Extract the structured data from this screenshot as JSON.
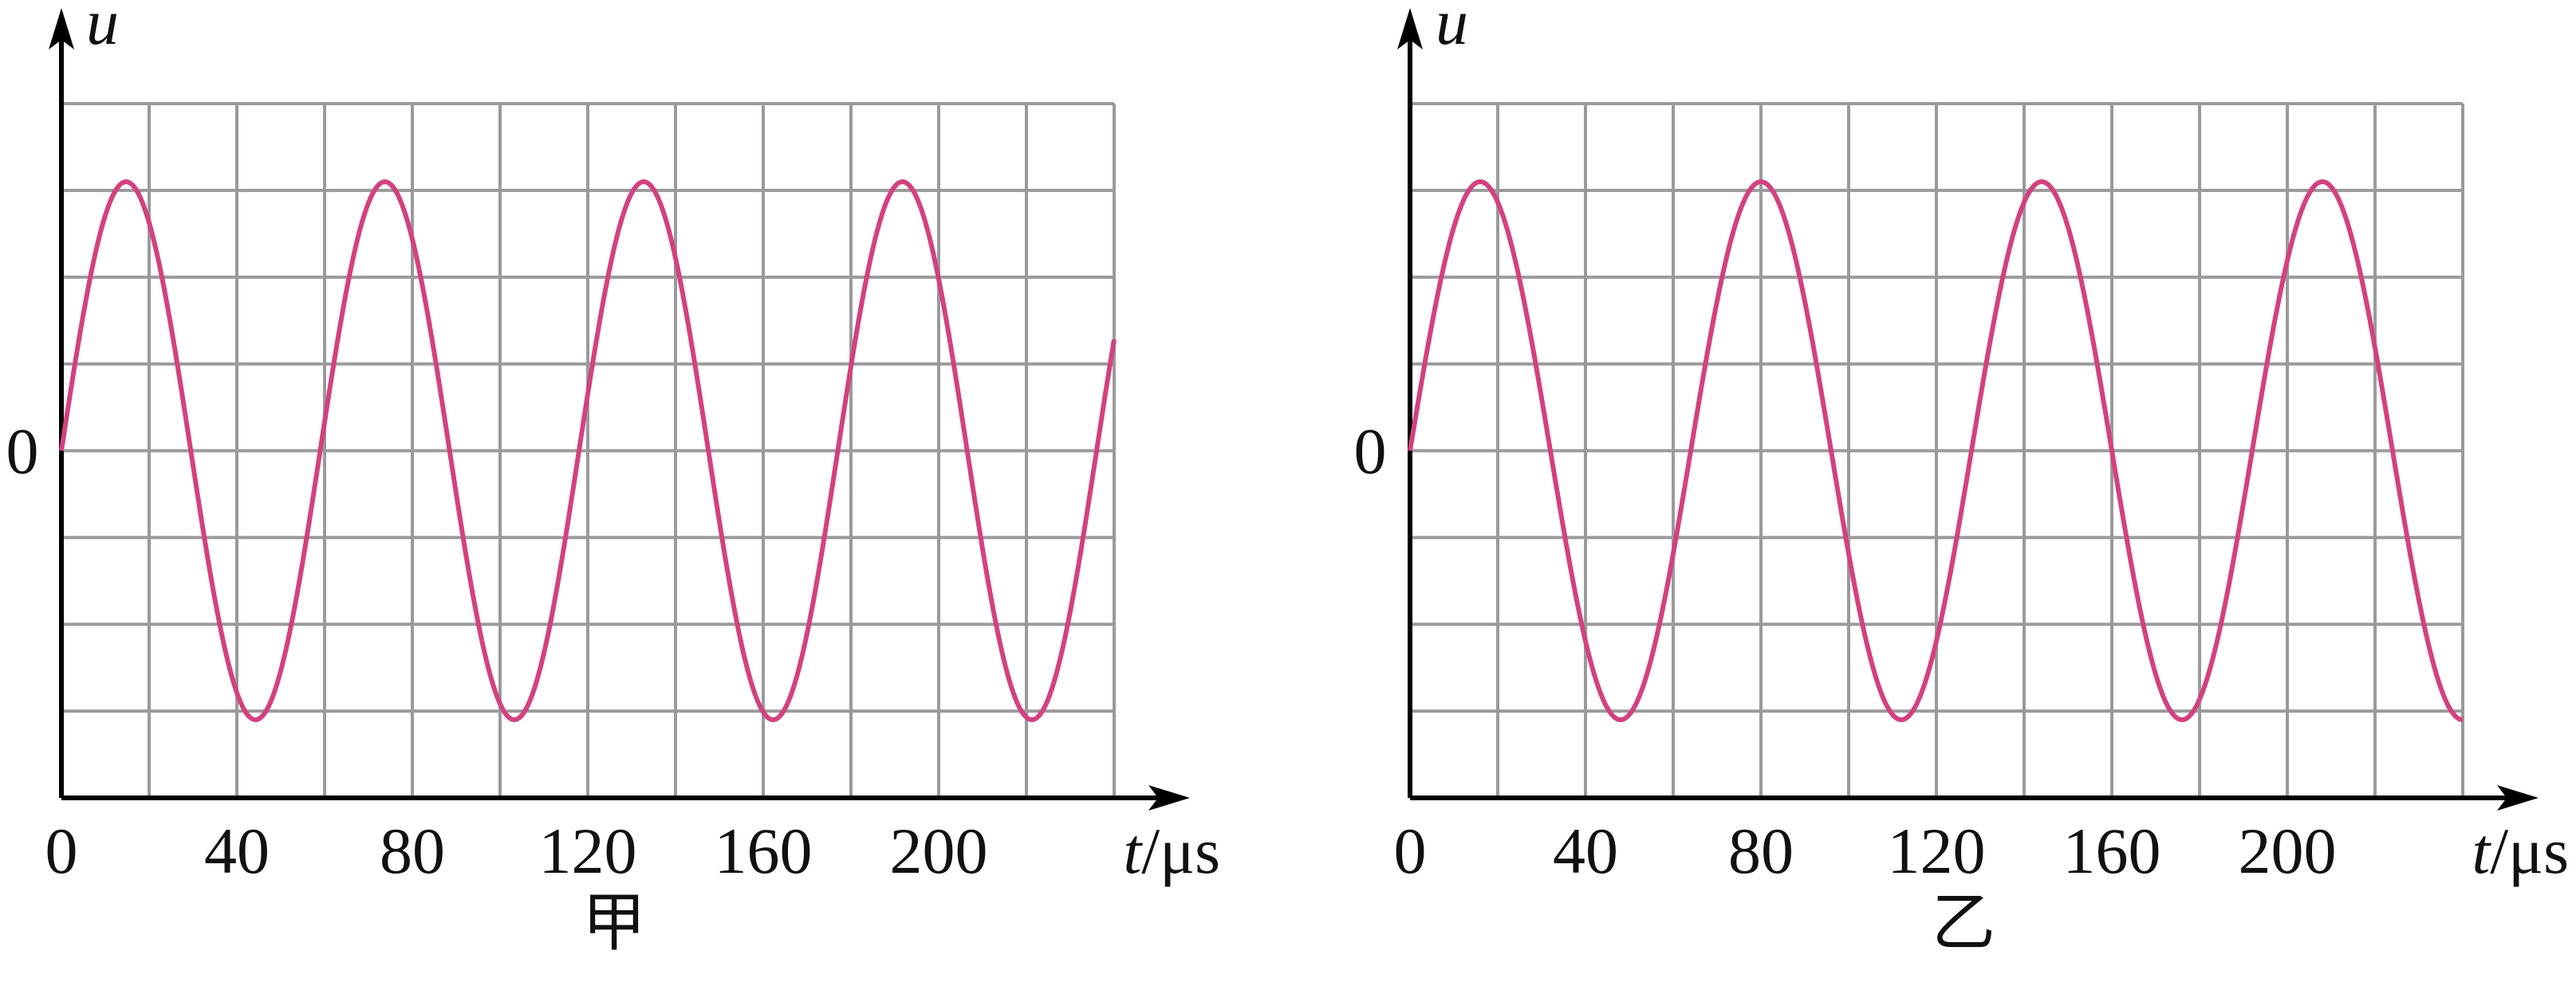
{
  "colors": {
    "curve": "#d2427f",
    "grid": "#9a9a9a",
    "axis": "#000000"
  },
  "chart_data": [
    {
      "type": "line",
      "caption": "甲",
      "ylabel": "u",
      "xlabel_var": "t",
      "xlabel_unit": "/μs",
      "origin_label": "0",
      "y_zero_label": "0",
      "xticks": [
        {
          "value": 0,
          "label": "0"
        },
        {
          "value": 40,
          "label": "40"
        },
        {
          "value": 80,
          "label": "80"
        },
        {
          "value": 120,
          "label": "120"
        },
        {
          "value": 160,
          "label": "160"
        },
        {
          "value": 200,
          "label": "200"
        }
      ],
      "xlim": [
        0,
        240
      ],
      "ylim": [
        -4,
        4
      ],
      "grid": {
        "x_step": 20,
        "y_step": 1
      },
      "series": [
        {
          "x": [
            0,
            14.75,
            44.25,
            73.75,
            103.25,
            132.75,
            162.25,
            191.75,
            221.25,
            240
          ],
          "y": [
            0,
            3.1,
            -3.1,
            3.1,
            -3.1,
            3.1,
            -3.1,
            3.1,
            -3.1,
            1.66
          ],
          "period": 59
        }
      ]
    },
    {
      "type": "line",
      "caption": "乙",
      "ylabel": "u",
      "xlabel_var": "t",
      "xlabel_unit": "/μs",
      "origin_label": "0",
      "y_zero_label": "0",
      "xticks": [
        {
          "value": 0,
          "label": "0"
        },
        {
          "value": 40,
          "label": "40"
        },
        {
          "value": 80,
          "label": "80"
        },
        {
          "value": 120,
          "label": "120"
        },
        {
          "value": 160,
          "label": "160"
        },
        {
          "value": 200,
          "label": "200"
        }
      ],
      "xlim": [
        0,
        240
      ],
      "ylim": [
        -4,
        4
      ],
      "grid": {
        "x_step": 20,
        "y_step": 1
      },
      "series": [
        {
          "x": [
            0,
            16,
            48,
            80,
            112,
            144,
            176,
            208,
            240
          ],
          "y": [
            0,
            3.1,
            -3.1,
            3.1,
            -3.1,
            3.1,
            -3.1,
            3.1,
            -3.1
          ],
          "period": 64
        }
      ]
    }
  ]
}
